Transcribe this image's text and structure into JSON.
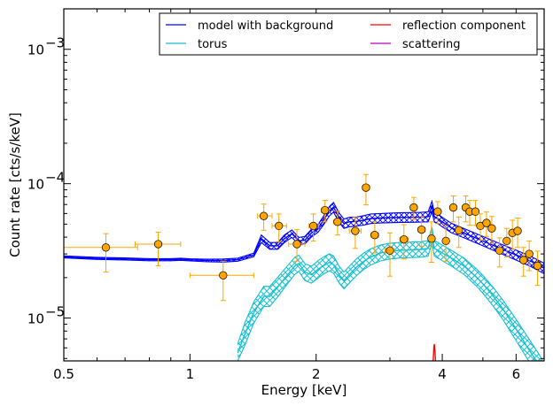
{
  "chart_data": {
    "type": "line",
    "xlabel": "Energy [keV]",
    "ylabel": "Count rate [cts/s/keV]",
    "xscale": "log",
    "yscale": "log",
    "xlim": [
      0.5,
      7.0
    ],
    "ylim": [
      4.8e-06,
      0.002
    ],
    "x_ticks": [
      {
        "value": 0.5,
        "label": "0.5"
      },
      {
        "value": 1,
        "label": "1"
      },
      {
        "value": 2,
        "label": "2"
      },
      {
        "value": 4,
        "label": "4"
      },
      {
        "value": 6,
        "label": "6"
      }
    ],
    "y_ticks": [
      {
        "value": 1e-05,
        "label": "10",
        "exp": "−5"
      },
      {
        "value": 0.0001,
        "label": "10",
        "exp": "−4"
      },
      {
        "value": 0.001,
        "label": "10",
        "exp": "−3"
      }
    ],
    "grid": false,
    "legend_position": "top-right",
    "legend": [
      {
        "label": "model with background",
        "color": "#0000ff"
      },
      {
        "label": "torus",
        "color": "#17becf"
      },
      {
        "label": "reflection component",
        "color": "#ff0000"
      },
      {
        "label": "scattering",
        "color": "#bf00bf"
      }
    ],
    "series": [
      {
        "name": "model with background",
        "color": "#0000ff",
        "band": "hatched",
        "x": [
          0.5,
          0.6,
          0.7,
          0.8,
          0.9,
          0.95,
          1.0,
          1.1,
          1.2,
          1.3,
          1.42,
          1.48,
          1.55,
          1.62,
          1.68,
          1.75,
          1.82,
          1.88,
          1.95,
          2.02,
          2.08,
          2.15,
          2.2,
          2.27,
          2.33,
          2.4,
          2.5,
          2.6,
          2.7,
          2.85,
          3.0,
          3.2,
          3.4,
          3.55,
          3.7,
          3.78,
          3.83,
          3.9,
          4.0,
          4.2,
          4.5,
          5.0,
          5.5,
          6.0,
          6.5,
          7.0
        ],
        "values": [
          2.85e-05,
          2.78e-05,
          2.75e-05,
          2.72e-05,
          2.72e-05,
          2.74e-05,
          2.71e-05,
          2.68e-05,
          2.68e-05,
          2.72e-05,
          2.95e-05,
          3.9e-05,
          3.45e-05,
          3.45e-05,
          3.9e-05,
          4.25e-05,
          3.75e-05,
          3.8e-05,
          4.3e-05,
          4.65e-05,
          5.3e-05,
          6.25e-05,
          6.7e-05,
          5.6e-05,
          5.05e-05,
          5.2e-05,
          5.25e-05,
          5.35e-05,
          5.5e-05,
          5.55e-05,
          5.58e-05,
          5.62e-05,
          5.63e-05,
          5.65e-05,
          5.68e-05,
          6.8e-05,
          5.65e-05,
          5.5e-05,
          5.2e-05,
          4.7e-05,
          4.3e-05,
          3.75e-05,
          3.3e-05,
          2.95e-05,
          2.65e-05,
          2.35e-05
        ],
        "band_lo": [
          2.8e-05,
          2.73e-05,
          2.7e-05,
          2.67e-05,
          2.67e-05,
          2.69e-05,
          2.66e-05,
          2.62e-05,
          2.61e-05,
          2.65e-05,
          2.86e-05,
          3.65e-05,
          3.25e-05,
          3.25e-05,
          3.65e-05,
          3.98e-05,
          3.52e-05,
          3.55e-05,
          4.02e-05,
          4.35e-05,
          4.9e-05,
          5.75e-05,
          6.15e-05,
          5.15e-05,
          4.65e-05,
          4.78e-05,
          4.85e-05,
          4.92e-05,
          5.05e-05,
          5.1e-05,
          5.12e-05,
          5.15e-05,
          5.16e-05,
          5.18e-05,
          5.2e-05,
          6.2e-05,
          5.18e-05,
          5.05e-05,
          4.78e-05,
          4.32e-05,
          3.96e-05,
          3.45e-05,
          3.03e-05,
          2.7e-05,
          2.42e-05,
          2.14e-05
        ],
        "band_hi": [
          2.9e-05,
          2.83e-05,
          2.8e-05,
          2.77e-05,
          2.77e-05,
          2.79e-05,
          2.76e-05,
          2.74e-05,
          2.75e-05,
          2.79e-05,
          3.04e-05,
          4.15e-05,
          3.65e-05,
          3.65e-05,
          4.15e-05,
          4.52e-05,
          3.98e-05,
          4.05e-05,
          4.58e-05,
          4.95e-05,
          5.7e-05,
          6.75e-05,
          7.25e-05,
          6.05e-05,
          5.45e-05,
          5.62e-05,
          5.65e-05,
          5.78e-05,
          5.95e-05,
          6e-05,
          6.04e-05,
          6.09e-05,
          6.1e-05,
          6.12e-05,
          6.16e-05,
          7.4e-05,
          6.12e-05,
          5.95e-05,
          5.62e-05,
          5.08e-05,
          4.64e-05,
          4.05e-05,
          3.57e-05,
          3.2e-05,
          2.88e-05,
          2.56e-05
        ]
      },
      {
        "name": "torus",
        "color": "#17becf",
        "band": "hatched",
        "x": [
          1.3,
          1.35,
          1.42,
          1.5,
          1.55,
          1.62,
          1.7,
          1.78,
          1.82,
          1.88,
          1.95,
          2.02,
          2.08,
          2.15,
          2.2,
          2.27,
          2.33,
          2.4,
          2.5,
          2.6,
          2.7,
          2.85,
          3.0,
          3.2,
          3.4,
          3.55,
          3.7,
          3.78,
          3.83,
          3.9,
          4.0,
          4.2,
          4.5,
          4.8,
          5.0,
          5.3,
          5.6,
          6.0,
          6.4,
          6.8,
          7.0
        ],
        "values": [
          5.5e-06,
          7.5e-06,
          1.1e-05,
          1.45e-05,
          1.45e-05,
          1.7e-05,
          2.05e-05,
          2.45e-05,
          2.55e-05,
          2.2e-05,
          2.1e-05,
          2.3e-05,
          2.45e-05,
          2.6e-05,
          2.5e-05,
          2.1e-05,
          1.9e-05,
          2.1e-05,
          2.4e-05,
          2.65e-05,
          2.85e-05,
          3.05e-05,
          3.15e-05,
          3.2e-05,
          3.22e-05,
          3.24e-05,
          3.3e-05,
          4.15e-05,
          3.3e-05,
          3.2e-05,
          3.05e-05,
          2.8e-05,
          2.45e-05,
          2.05e-05,
          1.8e-05,
          1.45e-05,
          1.15e-05,
          8.3e-06,
          6e-06,
          4.5e-06,
          3.8e-06
        ],
        "band_lo": [
          4.8e-06,
          6.2e-06,
          9.2e-06,
          1.22e-05,
          1.22e-05,
          1.44e-05,
          1.76e-05,
          2.12e-05,
          2.22e-05,
          1.9e-05,
          1.82e-05,
          1.98e-05,
          2.12e-05,
          2.25e-05,
          2.16e-05,
          1.82e-05,
          1.65e-05,
          1.82e-05,
          2.08e-05,
          2.3e-05,
          2.48e-05,
          2.66e-05,
          2.75e-05,
          2.8e-05,
          2.82e-05,
          2.84e-05,
          2.89e-05,
          3.62e-05,
          2.89e-05,
          2.8e-05,
          2.67e-05,
          2.44e-05,
          2.12e-05,
          1.76e-05,
          1.53e-05,
          1.22e-05,
          9.6e-06,
          6.8e-06,
          4.9e-06,
          3.7e-06,
          3.1e-06
        ],
        "band_hi": [
          6.4e-06,
          9.1e-06,
          1.32e-05,
          1.72e-05,
          1.72e-05,
          2.01e-05,
          2.4e-05,
          2.84e-05,
          2.94e-05,
          2.54e-05,
          2.43e-05,
          2.67e-05,
          2.84e-05,
          3.01e-05,
          2.9e-05,
          2.43e-05,
          2.2e-05,
          2.43e-05,
          2.77e-05,
          3.05e-05,
          3.28e-05,
          3.5e-05,
          3.61e-05,
          3.66e-05,
          3.68e-05,
          3.7e-05,
          3.77e-05,
          4.75e-05,
          3.77e-05,
          3.66e-05,
          3.49e-05,
          3.2e-05,
          2.8e-05,
          2.36e-05,
          2.08e-05,
          1.68e-05,
          1.34e-05,
          9.8e-06,
          7.2e-06,
          5.4e-06,
          4.6e-06
        ]
      },
      {
        "name": "reflection component",
        "color": "#ff0000",
        "x": [
          3.8,
          3.81,
          3.82,
          3.83,
          3.84,
          3.85,
          3.86
        ],
        "values": [
          4.5e-06,
          5.2e-06,
          6.1e-06,
          6.4e-06,
          5.8e-06,
          5e-06,
          4.5e-06
        ]
      },
      {
        "name": "scattering",
        "color": "#bf00bf",
        "x": [],
        "values": []
      }
    ],
    "data_points": {
      "color": "#ffa500",
      "edge_color": "#000000",
      "error_color": "#ffa500",
      "points": [
        {
          "x": 0.63,
          "y": 3.35e-05,
          "xlo": 0.5,
          "xhi": 0.75,
          "ylo": 2.2e-05,
          "yhi": 4.25e-05
        },
        {
          "x": 0.84,
          "y": 3.55e-05,
          "xlo": 0.74,
          "xhi": 0.95,
          "ylo": 2.45e-05,
          "yhi": 4.35e-05
        },
        {
          "x": 1.2,
          "y": 2.08e-05,
          "xlo": 1.0,
          "xhi": 1.42,
          "ylo": 1.35e-05,
          "yhi": 2.65e-05
        },
        {
          "x": 1.5,
          "y": 5.75e-05,
          "xlo": 1.45,
          "xhi": 1.57,
          "ylo": 4.5e-05,
          "yhi": 7.05e-05
        },
        {
          "x": 1.63,
          "y": 4.85e-05,
          "xlo": 1.57,
          "xhi": 1.7,
          "ylo": 3.7e-05,
          "yhi": 5.95e-05
        },
        {
          "x": 1.8,
          "y": 3.55e-05,
          "xlo": 1.72,
          "xhi": 1.88,
          "ylo": 2.65e-05,
          "yhi": 4.55e-05
        },
        {
          "x": 1.97,
          "y": 4.85e-05,
          "xlo": 1.92,
          "xhi": 2.03,
          "ylo": 3.75e-05,
          "yhi": 5.95e-05
        },
        {
          "x": 2.1,
          "y": 6.35e-05,
          "xlo": 2.06,
          "xhi": 2.15,
          "ylo": 5.2e-05,
          "yhi": 7.5e-05
        },
        {
          "x": 2.25,
          "y": 5.2e-05,
          "xlo": 2.2,
          "xhi": 2.3,
          "ylo": 4.15e-05,
          "yhi": 6.25e-05
        },
        {
          "x": 2.48,
          "y": 4.45e-05,
          "xlo": 2.4,
          "xhi": 2.56,
          "ylo": 3.3e-05,
          "yhi": 5.6e-05
        },
        {
          "x": 2.63,
          "y": 9.35e-05,
          "xlo": 2.58,
          "xhi": 2.68,
          "ylo": 6.95e-05,
          "yhi": 0.000117
        },
        {
          "x": 2.76,
          "y": 4.15e-05,
          "xlo": 2.7,
          "xhi": 2.82,
          "ylo": 3.05e-05,
          "yhi": 5.25e-05
        },
        {
          "x": 3.0,
          "y": 3.18e-05,
          "xlo": 2.92,
          "xhi": 3.08,
          "ylo": 2.05e-05,
          "yhi": 4.3e-05
        },
        {
          "x": 3.24,
          "y": 3.85e-05,
          "xlo": 3.17,
          "xhi": 3.32,
          "ylo": 2.75e-05,
          "yhi": 4.95e-05
        },
        {
          "x": 3.42,
          "y": 6.65e-05,
          "xlo": 3.36,
          "xhi": 3.48,
          "ylo": 5.4e-05,
          "yhi": 7.9e-05
        },
        {
          "x": 3.57,
          "y": 4.55e-05,
          "xlo": 3.5,
          "xhi": 3.64,
          "ylo": 3.4e-05,
          "yhi": 5.7e-05
        },
        {
          "x": 3.77,
          "y": 3.9e-05,
          "xlo": 3.72,
          "xhi": 3.82,
          "ylo": 2.6e-05,
          "yhi": 5.2e-05
        },
        {
          "x": 3.9,
          "y": 6.2e-05,
          "xlo": 3.85,
          "xhi": 3.95,
          "ylo": 5.05e-05,
          "yhi": 7.35e-05
        },
        {
          "x": 4.08,
          "y": 3.75e-05,
          "xlo": 4.02,
          "xhi": 4.14,
          "ylo": 2.65e-05,
          "yhi": 4.85e-05
        },
        {
          "x": 4.25,
          "y": 6.65e-05,
          "xlo": 4.19,
          "xhi": 4.31,
          "ylo": 5.2e-05,
          "yhi": 8.1e-05
        },
        {
          "x": 4.38,
          "y": 4.5e-05,
          "xlo": 4.32,
          "xhi": 4.44,
          "ylo": 3.35e-05,
          "yhi": 5.65e-05
        },
        {
          "x": 4.55,
          "y": 6.65e-05,
          "xlo": 4.49,
          "xhi": 4.61,
          "ylo": 5.2e-05,
          "yhi": 8.1e-05
        },
        {
          "x": 4.65,
          "y": 6.2e-05,
          "xlo": 4.61,
          "xhi": 4.69,
          "ylo": 4.9e-05,
          "yhi": 7.5e-05
        },
        {
          "x": 4.8,
          "y": 6.2e-05,
          "xlo": 4.75,
          "xhi": 4.86,
          "ylo": 4.9e-05,
          "yhi": 7.5e-05
        },
        {
          "x": 4.93,
          "y": 4.85e-05,
          "xlo": 4.88,
          "xhi": 4.98,
          "ylo": 3.8e-05,
          "yhi": 5.95e-05
        },
        {
          "x": 5.1,
          "y": 5.1e-05,
          "xlo": 5.03,
          "xhi": 5.17,
          "ylo": 4.05e-05,
          "yhi": 6.15e-05
        },
        {
          "x": 5.25,
          "y": 4.65e-05,
          "xlo": 5.19,
          "xhi": 5.31,
          "ylo": 3.6e-05,
          "yhi": 5.7e-05
        },
        {
          "x": 5.48,
          "y": 3.18e-05,
          "xlo": 5.4,
          "xhi": 5.56,
          "ylo": 2.4e-05,
          "yhi": 3.95e-05
        },
        {
          "x": 5.7,
          "y": 3.75e-05,
          "xlo": 5.63,
          "xhi": 5.77,
          "ylo": 2.85e-05,
          "yhi": 4.65e-05
        },
        {
          "x": 5.88,
          "y": 4.3e-05,
          "xlo": 5.82,
          "xhi": 5.94,
          "ylo": 3.25e-05,
          "yhi": 5.35e-05
        },
        {
          "x": 6.05,
          "y": 4.45e-05,
          "xlo": 5.99,
          "xhi": 6.11,
          "ylo": 3.35e-05,
          "yhi": 5.55e-05
        },
        {
          "x": 6.25,
          "y": 2.7e-05,
          "xlo": 6.18,
          "xhi": 6.32,
          "ylo": 2.05e-05,
          "yhi": 3.35e-05
        },
        {
          "x": 6.45,
          "y": 3e-05,
          "xlo": 6.38,
          "xhi": 6.52,
          "ylo": 2.25e-05,
          "yhi": 3.75e-05
        },
        {
          "x": 6.75,
          "y": 2.45e-05,
          "xlo": 6.62,
          "xhi": 6.88,
          "ylo": 1.75e-05,
          "yhi": 3.15e-05
        }
      ]
    }
  }
}
